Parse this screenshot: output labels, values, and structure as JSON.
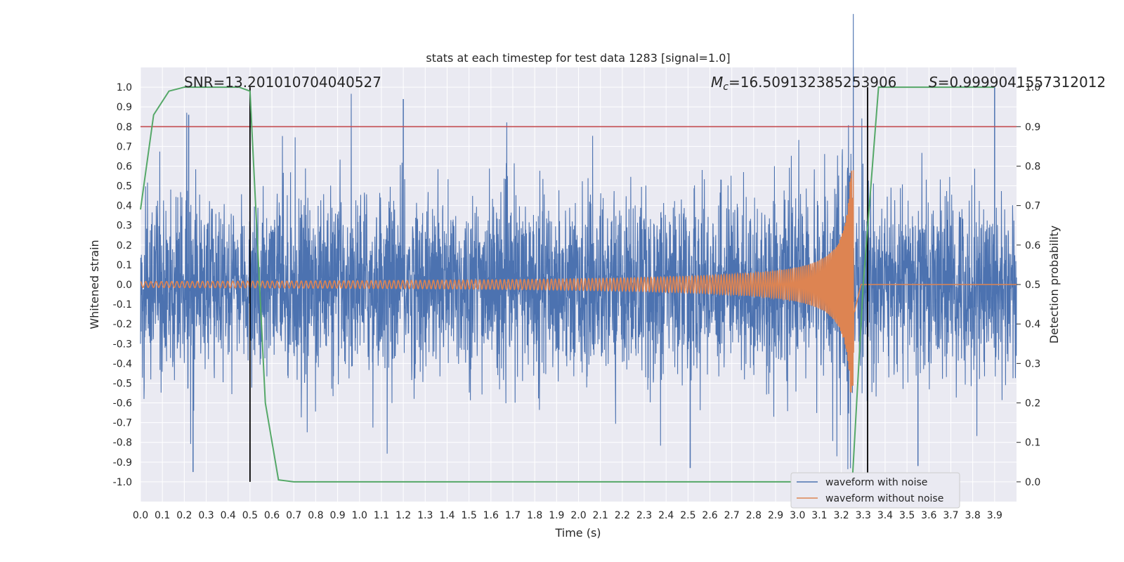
{
  "chart_data": {
    "type": "line",
    "title": "stats at each timestep for test data 1283 [signal=1.0]",
    "xlabel": "Time (s)",
    "ylabel": "Whitened strain",
    "ylabel_right": "Detection probability",
    "xlim": [
      0.0,
      4.0
    ],
    "ylim": [
      -1.1,
      1.1
    ],
    "ylim_right": [
      -0.05,
      1.05
    ],
    "x_ticks": [
      "0.0",
      "0.1",
      "0.2",
      "0.3",
      "0.4",
      "0.5",
      "0.6",
      "0.7",
      "0.8",
      "0.9",
      "1.0",
      "1.1",
      "1.2",
      "1.3",
      "1.4",
      "1.5",
      "1.6",
      "1.7",
      "1.8",
      "1.9",
      "2.0",
      "2.1",
      "2.2",
      "2.3",
      "2.4",
      "2.5",
      "2.6",
      "2.7",
      "2.8",
      "2.9",
      "3.0",
      "3.1",
      "3.2",
      "3.3",
      "3.4",
      "3.5",
      "3.6",
      "3.7",
      "3.8",
      "3.9"
    ],
    "y_ticks": [
      "1.0",
      "0.9",
      "0.8",
      "0.7",
      "0.6",
      "0.5",
      "0.4",
      "0.3",
      "0.2",
      "0.1",
      "0.0",
      "-0.1",
      "-0.2",
      "-0.3",
      "-0.4",
      "-0.5",
      "-0.6",
      "-0.7",
      "-0.8",
      "-0.9",
      "-1.0"
    ],
    "y_ticks_right": [
      "1.0",
      "0.9",
      "0.8",
      "0.7",
      "0.6",
      "0.5",
      "0.4",
      "0.3",
      "0.2",
      "0.1",
      "0.0"
    ],
    "grid": true,
    "legend_position": "bottom-right",
    "annotations": {
      "snr": "SNR=13.201010704040527",
      "mc": "=16.509132385253906",
      "mc_symbol": "M",
      "mc_sub": "c",
      "s": "=0.9999041557312012",
      "s_symbol": "S"
    },
    "threshold_right": 0.9,
    "vertical_lines": [
      0.5,
      3.32
    ],
    "series": [
      {
        "name": "waveform with noise",
        "color": "#4c72b0",
        "axis": "left",
        "description_values": "dense noise, amplitude roughly within ±0.6 with spikes to ~0.9",
        "peak_spikes": [
          {
            "x": 0.22,
            "y": 0.86
          },
          {
            "x": 1.2,
            "y": 0.94
          },
          {
            "x": 3.9,
            "y": 1.0
          },
          {
            "x": 0.24,
            "y": -0.95
          },
          {
            "x": 2.51,
            "y": -0.93
          },
          {
            "x": 3.55,
            "y": -0.92
          }
        ]
      },
      {
        "name": "waveform without noise",
        "color": "#dd8452",
        "axis": "left",
        "chirp_start_amplitude": 0.015,
        "chirp_peak_time": 3.26,
        "chirp_peak_amplitude": 0.58
      },
      {
        "name": "detection probability",
        "color": "#55a868",
        "axis": "right",
        "x": [
          0.0,
          0.06,
          0.13,
          0.2,
          0.3,
          0.4,
          0.45,
          0.5,
          0.57,
          0.63,
          0.7,
          3.2,
          3.25,
          3.3,
          3.37,
          3.4,
          3.9
        ],
        "y": [
          0.69,
          0.93,
          0.99,
          1.0,
          1.0,
          1.0,
          1.0,
          0.99,
          0.2,
          0.005,
          0.0,
          0.0,
          0.0,
          0.5,
          1.0,
          1.0,
          1.0
        ]
      }
    ],
    "threshold_color": "#c44e52",
    "vline_color": "#000000"
  }
}
